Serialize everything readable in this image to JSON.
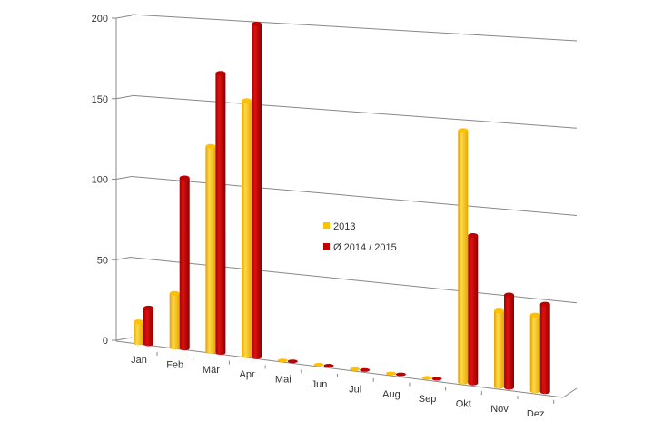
{
  "chart_data": {
    "type": "bar",
    "subtype": "3d-cylinder",
    "title": "",
    "xlabel": "",
    "ylabel": "",
    "ylim": [
      0,
      200
    ],
    "yticks": [
      "0",
      "50",
      "100",
      "150",
      "200"
    ],
    "grid": true,
    "legend_position": "center",
    "categories": [
      "Jan",
      "Feb",
      "Mär",
      "Apr",
      "Mai",
      "Jun",
      "Jul",
      "Aug",
      "Sep",
      "Okt",
      "Nov",
      "Dez"
    ],
    "series": [
      {
        "name": "2013",
        "color": "#FFC000",
        "values": [
          13,
          33,
          125,
          155,
          0,
          0,
          0,
          0,
          0,
          150,
          45,
          45
        ]
      },
      {
        "name": "Ø 2014 / 2015",
        "color": "#C00000",
        "values": [
          22,
          104,
          170,
          202,
          0,
          0,
          0,
          0,
          0,
          88,
          55,
          52
        ]
      }
    ]
  }
}
